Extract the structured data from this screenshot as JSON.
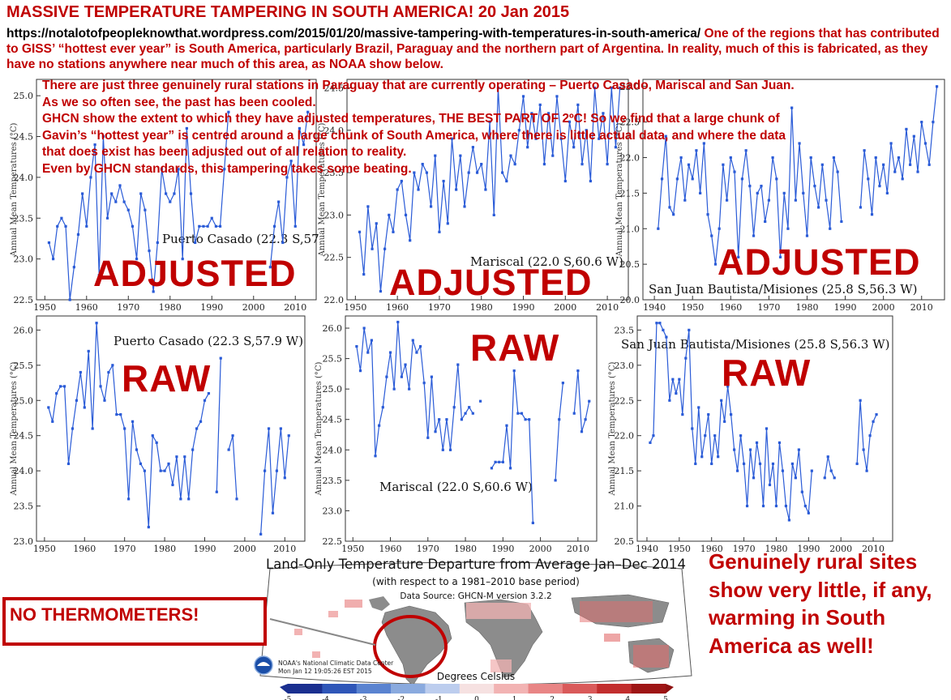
{
  "headline": "MASSIVE TEMPERATURE TAMPERING IN SOUTH AMERICA! 20 Jan 2015",
  "intro": {
    "url": "https://notalotofpeopleknowthat.wordpress.com/2015/01/20/massive-tampering-with-temperatures-in-south-america/",
    "text": " One of the regions that has contributed to GISS’ “hottest ever year” is South America, particularly Brazil, Paraguay and the northern part of Argentina. In reality, much of this is fabricated, as they have no stations anywhere near much of this area, as NOAA show below."
  },
  "overlay_lines": [
    "There are just three genuinely rural stations in Paraguay that are currently operating – Puerto Casado, Mariscal and San Juan.",
    "As we so often see, the past has been cooled.",
    "GHCN show the extent to which they have adjusted temperatures, THE BEST PART OF 2ºC! So we find that a large chunk of",
    "Gavin’s “hottest year” is centred around a large chunk of South America, where there is little actual data, and where the data",
    "that does exist has been adjusted out of all relation to reality.",
    "Even by GHCN standards, this tampering takes some beating."
  ],
  "stamps": {
    "adjusted": "ADJUSTED",
    "raw": "RAW"
  },
  "ylabel_full": "Annual Mean Temperatures (°C)",
  "map": {
    "title": "Land-Only Temperature Departure from Average Jan–Dec 2014",
    "subtitle": "(with respect to a 1981–2010 base period)",
    "source": "Data Source: GHCN-M version 3.2.2",
    "credit1": "NOAA's National Climatic Data Center",
    "credit2": "Mon Jan 12 19:05:26 EST 2015",
    "units": "Degrees Celsius",
    "colorbar_ticks": [
      "-5",
      "-4",
      "-3",
      "-2",
      "-1",
      "0",
      "1",
      "2",
      "3",
      "4",
      "5"
    ]
  },
  "callout": "NO THERMOMETERS!",
  "closing": "Genuinely rural sites show very little, if any, warming in South America as well!",
  "colors": {
    "accent": "#c00000",
    "series": "#2a5bd7",
    "land_missing": "#8c8c8c"
  },
  "chart_data": [
    {
      "type": "line",
      "variant": "ADJUSTED",
      "station": "Puerto Casado (22.3 S,57.9 W)",
      "xlabel": "",
      "ylabel": "Annual Mean Temperatures (°C)",
      "xlim": [
        1948,
        2015
      ],
      "ylim": [
        22.5,
        25.2
      ],
      "xticks": [
        1950,
        1960,
        1970,
        1980,
        1990,
        2000,
        2010
      ],
      "yticks": [
        22.5,
        23.0,
        23.5,
        24.0,
        24.5,
        25.0
      ],
      "series": [
        {
          "name": "",
          "x": [
            1951,
            1952,
            1953,
            1954,
            1955,
            1956,
            1957,
            1958,
            1959,
            1960,
            1961,
            1962,
            1963,
            1964,
            1965,
            1966,
            1967,
            1968,
            1969,
            1970,
            1971,
            1972,
            1973,
            1974,
            1975,
            1976,
            1977,
            1978,
            1979,
            1980,
            1981,
            1982,
            1983,
            1984,
            1985,
            1986,
            1987,
            1988,
            1989,
            1990,
            1991,
            1992,
            1993,
            1994
          ],
          "y": [
            23.2,
            23.0,
            23.4,
            23.5,
            23.4,
            22.5,
            22.9,
            23.3,
            23.8,
            23.4,
            24.0,
            24.4,
            22.8,
            24.5,
            23.5,
            23.8,
            23.7,
            23.9,
            23.7,
            23.6,
            23.4,
            23.0,
            23.8,
            23.6,
            23.1,
            22.6,
            23.2,
            24.1,
            23.8,
            23.7,
            23.8,
            24.1,
            23.0,
            24.6,
            23.8,
            23.2,
            23.4,
            23.4,
            23.4,
            23.5,
            23.4,
            23.4,
            24.1,
            24.8
          ]
        },
        {
          "name": "",
          "x": [
            2004,
            2005,
            2006,
            2007,
            2008,
            2009,
            2010,
            2011,
            2012,
            2013
          ],
          "y": [
            22.9,
            23.4,
            23.7,
            23.2,
            24.0,
            24.2,
            23.4,
            24.6,
            24.4,
            24.8
          ]
        }
      ]
    },
    {
      "type": "line",
      "variant": "ADJUSTED",
      "station": "Mariscal (22.0 S,60.6 W)",
      "xlabel": "",
      "ylabel": "Annual Mean Temperatures (°C)",
      "xlim": [
        1948,
        2015
      ],
      "ylim": [
        22.0,
        24.6
      ],
      "xticks": [
        1950,
        1960,
        1970,
        1980,
        1990,
        2000,
        2010
      ],
      "yticks": [
        22.0,
        22.5,
        23.0,
        23.5,
        24.0,
        24.5
      ],
      "series": [
        {
          "name": "",
          "x": [
            1951,
            1952,
            1953,
            1954,
            1955,
            1956,
            1957,
            1958,
            1959,
            1960,
            1961,
            1962,
            1963,
            1964,
            1965,
            1966,
            1967,
            1968,
            1969,
            1970,
            1971,
            1972,
            1973,
            1974,
            1975,
            1976,
            1977,
            1978,
            1979,
            1980,
            1981,
            1982,
            1983,
            1984,
            1985,
            1986,
            1987,
            1988,
            1989,
            1990,
            1991,
            1992,
            1993,
            1994,
            1995,
            1996,
            1997,
            1998,
            1999,
            2000,
            2001,
            2002,
            2003,
            2004,
            2005,
            2006,
            2007,
            2008,
            2009,
            2010,
            2011,
            2012,
            2013
          ],
          "y": [
            22.8,
            22.3,
            23.1,
            22.6,
            22.9,
            22.1,
            22.6,
            23.0,
            22.8,
            23.3,
            23.4,
            23.0,
            22.7,
            23.5,
            23.3,
            23.6,
            23.5,
            23.1,
            23.7,
            22.8,
            23.4,
            22.9,
            23.9,
            23.3,
            23.7,
            23.1,
            23.5,
            23.8,
            23.5,
            23.6,
            23.3,
            24.1,
            23.0,
            24.5,
            23.5,
            23.4,
            23.7,
            23.6,
            24.0,
            24.4,
            23.8,
            24.2,
            23.9,
            24.3,
            23.6,
            24.2,
            23.7,
            24.4,
            23.9,
            23.4,
            24.1,
            23.8,
            24.3,
            23.6,
            24.0,
            23.4,
            24.5,
            23.9,
            24.2,
            23.6,
            24.5,
            23.8,
            24.5
          ]
        }
      ]
    },
    {
      "type": "line",
      "variant": "ADJUSTED",
      "station": "San Juan Bautista/Misiones (25.8 S,56.3 W)",
      "xlabel": "",
      "ylabel": "Annual Mean Temperatures (°C)",
      "xlim": [
        1937,
        2016
      ],
      "ylim": [
        20.0,
        23.1
      ],
      "xticks": [
        1940,
        1950,
        1960,
        1970,
        1980,
        1990,
        2000,
        2010
      ],
      "yticks": [
        20.0,
        20.5,
        21.0,
        21.5,
        22.0,
        22.5,
        23.0
      ],
      "series": [
        {
          "name": "",
          "x": [
            1941,
            1942,
            1943,
            1944,
            1945,
            1946,
            1947,
            1948,
            1949,
            1950,
            1951,
            1952,
            1953,
            1954,
            1955,
            1956,
            1957,
            1958,
            1959,
            1960,
            1961,
            1962,
            1963,
            1964,
            1965,
            1966,
            1967,
            1968,
            1969,
            1970,
            1971,
            1972,
            1973,
            1974,
            1975,
            1976,
            1977,
            1978,
            1979,
            1980,
            1981,
            1982,
            1983,
            1984,
            1985,
            1986,
            1987,
            1988,
            1989
          ],
          "y": [
            21.0,
            21.7,
            22.3,
            21.3,
            21.2,
            21.7,
            22.0,
            21.4,
            21.9,
            21.7,
            22.1,
            21.5,
            22.2,
            21.2,
            20.9,
            20.5,
            21.0,
            21.9,
            21.4,
            22.0,
            21.8,
            20.6,
            21.7,
            22.1,
            21.6,
            20.9,
            21.5,
            21.6,
            21.1,
            21.4,
            22.0,
            21.7,
            20.6,
            21.5,
            21.0,
            22.7,
            21.4,
            22.2,
            21.5,
            20.9,
            22.0,
            21.6,
            21.3,
            21.9,
            21.4,
            21.0,
            22.0,
            21.8,
            21.1
          ]
        },
        {
          "name": "",
          "x": [
            1994,
            1995,
            1996,
            1997,
            1998,
            1999,
            2000,
            2001,
            2002,
            2003,
            2004,
            2005,
            2006,
            2007,
            2008,
            2009,
            2010,
            2011,
            2012,
            2013,
            2014
          ],
          "y": [
            21.3,
            22.1,
            21.7,
            21.2,
            22.0,
            21.6,
            21.9,
            21.5,
            22.2,
            21.8,
            22.0,
            21.7,
            22.4,
            21.9,
            22.3,
            21.8,
            22.5,
            22.2,
            21.9,
            22.5,
            23.0
          ]
        }
      ]
    },
    {
      "type": "line",
      "variant": "RAW",
      "station": "Puerto Casado (22.3 S,57.9 W)",
      "xlabel": "",
      "ylabel": "Annual Mean Temperatures (°C)",
      "xlim": [
        1948,
        2015
      ],
      "ylim": [
        23.0,
        26.2
      ],
      "xticks": [
        1950,
        1960,
        1970,
        1980,
        1990,
        2000,
        2010
      ],
      "yticks": [
        23.0,
        23.5,
        24.0,
        24.5,
        25.0,
        25.5,
        26.0
      ],
      "series": [
        {
          "name": "",
          "x": [
            1951,
            1952,
            1953,
            1954,
            1955,
            1956,
            1957,
            1958,
            1959,
            1960,
            1961,
            1962,
            1963,
            1964,
            1965,
            1966,
            1967,
            1968,
            1969,
            1970,
            1971,
            1972,
            1973,
            1974,
            1975,
            1976,
            1977,
            1978,
            1979,
            1980,
            1981,
            1982,
            1983,
            1984,
            1985,
            1986,
            1987,
            1988,
            1989,
            1990,
            1991
          ],
          "y": [
            24.9,
            24.7,
            25.1,
            25.2,
            25.2,
            24.1,
            24.6,
            25.0,
            25.4,
            24.9,
            25.7,
            24.6,
            26.1,
            25.2,
            25.0,
            25.4,
            25.5,
            24.8,
            24.8,
            24.6,
            23.6,
            24.7,
            24.3,
            24.1,
            24.0,
            23.2,
            24.5,
            24.4,
            24.0,
            24.0,
            24.1,
            23.8,
            24.2,
            23.6,
            24.2,
            23.6,
            24.3,
            24.6,
            24.7,
            25.0,
            25.1
          ]
        },
        {
          "name": "",
          "x": [
            1993,
            1994
          ],
          "y": [
            23.7,
            25.6
          ]
        },
        {
          "name": "",
          "x": [
            1996,
            1997,
            1998
          ],
          "y": [
            24.3,
            24.5,
            23.6
          ]
        },
        {
          "name": "",
          "x": [
            2004,
            2005,
            2006,
            2007,
            2008,
            2009,
            2010,
            2011
          ],
          "y": [
            23.1,
            24.0,
            24.6,
            23.4,
            24.0,
            24.6,
            23.9,
            24.5
          ]
        }
      ]
    },
    {
      "type": "line",
      "variant": "RAW",
      "station": "Mariscal (22.0 S,60.6 W)",
      "xlabel": "",
      "ylabel": "Annual Mean Temperatures (°C)",
      "xlim": [
        1948,
        2015
      ],
      "ylim": [
        22.5,
        26.2
      ],
      "xticks": [
        1950,
        1960,
        1970,
        1980,
        1990,
        2000,
        2010
      ],
      "yticks": [
        22.5,
        23.0,
        23.5,
        24.0,
        24.5,
        25.0,
        25.5,
        26.0
      ],
      "series": [
        {
          "name": "",
          "x": [
            1951,
            1952,
            1953,
            1954,
            1955,
            1956,
            1957,
            1958,
            1959,
            1960,
            1961,
            1962,
            1963,
            1964,
            1965,
            1966,
            1967,
            1968,
            1969,
            1970,
            1971,
            1972,
            1973,
            1974,
            1975,
            1976,
            1977,
            1978,
            1979,
            1980,
            1981,
            1982
          ],
          "y": [
            25.7,
            25.3,
            26.0,
            25.6,
            25.8,
            23.9,
            24.4,
            24.7,
            25.2,
            25.6,
            25.0,
            26.1,
            25.2,
            25.4,
            25.0,
            25.8,
            25.6,
            25.7,
            25.1,
            24.2,
            25.2,
            24.3,
            24.5,
            24.0,
            24.5,
            24.0,
            24.7,
            25.4,
            24.5,
            24.6,
            24.7,
            24.6
          ]
        },
        {
          "name": "",
          "x": [
            1984
          ],
          "y": [
            24.8
          ]
        },
        {
          "name": "",
          "x": [
            1987,
            1988,
            1989,
            1990,
            1991,
            1992,
            1993,
            1994,
            1995,
            1996,
            1997,
            1998
          ],
          "y": [
            23.7,
            23.8,
            23.8,
            23.8,
            24.4,
            23.7,
            25.3,
            24.6,
            24.6,
            24.5,
            24.5,
            22.8
          ]
        },
        {
          "name": "",
          "x": [
            2004,
            2005,
            2006
          ],
          "y": [
            23.5,
            24.5,
            25.1
          ]
        },
        {
          "name": "",
          "x": [
            2009,
            2010,
            2011,
            2012,
            2013
          ],
          "y": [
            24.6,
            25.3,
            24.3,
            24.5,
            24.8
          ]
        }
      ]
    },
    {
      "type": "line",
      "variant": "RAW",
      "station": "San Juan Bautista/Misiones (25.8 S,56.3 W)",
      "xlabel": "",
      "ylabel": "Annual Mean Temperatures (°C)",
      "xlim": [
        1937,
        2016
      ],
      "ylim": [
        20.5,
        23.7
      ],
      "xticks": [
        1940,
        1950,
        1960,
        1970,
        1980,
        1990,
        2000,
        2010
      ],
      "yticks": [
        20.5,
        21.0,
        21.5,
        22.0,
        22.5,
        23.0,
        23.5
      ],
      "series": [
        {
          "name": "",
          "x": [
            1941,
            1942,
            1943,
            1944,
            1945,
            1946,
            1947,
            1948,
            1949,
            1950,
            1951,
            1952,
            1953,
            1954,
            1955,
            1956,
            1957,
            1958,
            1959,
            1960,
            1961,
            1962,
            1963,
            1964,
            1965,
            1966,
            1967,
            1968,
            1969,
            1970,
            1971,
            1972,
            1973,
            1974,
            1975,
            1976,
            1977,
            1978,
            1979,
            1980,
            1981,
            1982,
            1983,
            1984,
            1985,
            1986,
            1987,
            1988,
            1989,
            1990,
            1991
          ],
          "y": [
            21.9,
            22.0,
            23.6,
            23.6,
            23.5,
            23.4,
            22.5,
            22.8,
            22.6,
            22.8,
            22.3,
            23.1,
            23.5,
            22.1,
            21.6,
            22.4,
            21.7,
            22.0,
            22.3,
            21.6,
            22.0,
            21.7,
            22.5,
            22.2,
            22.7,
            22.3,
            21.8,
            21.5,
            22.0,
            21.6,
            21.0,
            21.8,
            21.4,
            21.9,
            21.6,
            21.0,
            22.1,
            21.3,
            21.6,
            21.0,
            21.9,
            21.5,
            21.0,
            20.8,
            21.6,
            21.4,
            21.8,
            21.2,
            21.0,
            20.9,
            21.5
          ]
        },
        {
          "name": "",
          "x": [
            1995,
            1996,
            1997,
            1998
          ],
          "y": [
            21.4,
            21.7,
            21.5,
            21.4
          ]
        },
        {
          "name": "",
          "x": [
            2005,
            2006,
            2007,
            2008,
            2009,
            2010,
            2011
          ],
          "y": [
            21.6,
            22.5,
            21.8,
            21.5,
            22.0,
            22.2,
            22.3
          ]
        }
      ]
    }
  ]
}
